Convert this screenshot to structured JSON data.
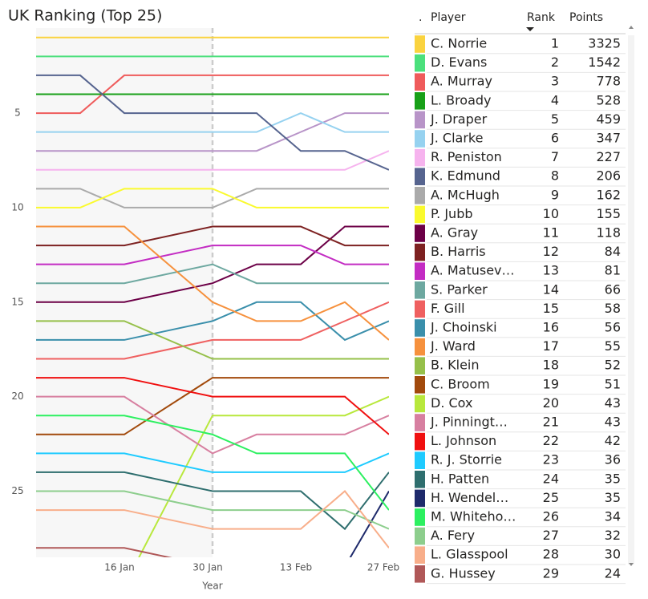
{
  "chart_data": {
    "type": "line",
    "title": "UK Ranking (Top 25)",
    "xlabel": "Year",
    "x": [
      2,
      9,
      16,
      30,
      37,
      44,
      51,
      58
    ],
    "xlim": [
      2,
      58
    ],
    "xticks": [
      {
        "value": 16,
        "label": "16 Jan"
      },
      {
        "value": 30,
        "label": "30 Jan"
      },
      {
        "value": 44,
        "label": "13 Feb"
      },
      {
        "value": 58,
        "label": "27 Feb"
      }
    ],
    "ylim": [
      0.5,
      28.5
    ],
    "yticks": [
      5,
      10,
      15,
      20,
      25
    ],
    "y_reversed": true,
    "grid": false,
    "reference_x": 30,
    "series": [
      {
        "name": "C. Norrie",
        "color": "#FAD33F",
        "values": [
          1,
          1,
          1,
          1,
          1,
          1,
          1,
          1
        ]
      },
      {
        "name": "D. Evans",
        "color": "#4BE07C",
        "values": [
          2,
          2,
          2,
          2,
          2,
          2,
          2,
          2
        ]
      },
      {
        "name": "A. Murray",
        "color": "#EF5B5B",
        "values": [
          5,
          5,
          3,
          3,
          3,
          3,
          3,
          3
        ]
      },
      {
        "name": "L. Broady",
        "color": "#18A018",
        "values": [
          4,
          4,
          4,
          4,
          4,
          4,
          4,
          4
        ]
      },
      {
        "name": "J. Draper",
        "color": "#B894C8",
        "values": [
          7,
          7,
          7,
          7,
          7,
          6,
          5,
          5
        ]
      },
      {
        "name": "J. Clarke",
        "color": "#96D2F0",
        "values": [
          6,
          6,
          6,
          6,
          6,
          5,
          6,
          6
        ]
      },
      {
        "name": "R. Peniston",
        "color": "#F6B3EE",
        "values": [
          8,
          8,
          8,
          8,
          8,
          8,
          8,
          7
        ]
      },
      {
        "name": "K. Edmund",
        "color": "#56648F",
        "values": [
          3,
          3,
          5,
          5,
          5,
          7,
          7,
          8
        ]
      },
      {
        "name": "A. McHugh",
        "color": "#AAAAAA",
        "values": [
          9,
          9,
          10,
          10,
          9,
          9,
          9,
          9
        ]
      },
      {
        "name": "P. Jubb",
        "color": "#FAFA2E",
        "values": [
          10,
          10,
          9,
          9,
          10,
          10,
          10,
          10
        ]
      },
      {
        "name": "A. Gray",
        "color": "#6C0047",
        "values": [
          15,
          15,
          15,
          14,
          13,
          13,
          11,
          11
        ]
      },
      {
        "name": "B. Harris",
        "color": "#7D2121",
        "values": [
          12,
          12,
          12,
          11,
          11,
          11,
          12,
          12
        ]
      },
      {
        "name": "A. Matusev…",
        "color": "#C32CC3",
        "values": [
          13,
          13,
          13,
          12,
          12,
          12,
          13,
          13
        ]
      },
      {
        "name": "S. Parker",
        "color": "#6DA8A0",
        "values": [
          14,
          14,
          14,
          13,
          14,
          14,
          14,
          14
        ]
      },
      {
        "name": "F. Gill",
        "color": "#EF6060",
        "values": [
          18,
          18,
          18,
          17,
          17,
          17,
          16,
          15
        ]
      },
      {
        "name": "J. Choinski",
        "color": "#3A8FAB",
        "values": [
          17,
          17,
          17,
          16,
          15,
          15,
          17,
          16
        ]
      },
      {
        "name": "J. Ward",
        "color": "#F6913D",
        "values": [
          11,
          11,
          11,
          15,
          16,
          16,
          15,
          17
        ]
      },
      {
        "name": "B. Klein",
        "color": "#96C04A",
        "values": [
          16,
          16,
          16,
          18,
          18,
          18,
          18,
          18
        ]
      },
      {
        "name": "C. Broom",
        "color": "#A24A0C",
        "values": [
          22,
          22,
          22,
          19,
          19,
          19,
          19,
          19
        ]
      },
      {
        "name": "D. Cox",
        "color": "#B8E83C",
        "values": [
          30,
          30,
          30,
          21,
          21,
          21,
          21,
          20
        ]
      },
      {
        "name": "J. Pinningt…",
        "color": "#D77FA0",
        "values": [
          20,
          20,
          20,
          23,
          22,
          22,
          22,
          21
        ]
      },
      {
        "name": "L. Johnson",
        "color": "#F01010",
        "values": [
          19,
          19,
          19,
          20,
          20,
          20,
          20,
          22
        ]
      },
      {
        "name": "R. J. Storrie",
        "color": "#1FCBFF",
        "values": [
          23,
          23,
          23,
          24,
          24,
          24,
          24,
          23
        ]
      },
      {
        "name": "H. Patten",
        "color": "#2E6E6E",
        "values": [
          24,
          24,
          24,
          25,
          25,
          25,
          27,
          24
        ]
      },
      {
        "name": "H. Wendel…",
        "color": "#1E2A6B",
        "values": [
          null,
          null,
          null,
          null,
          null,
          null,
          29,
          25
        ]
      },
      {
        "name": "M. Whiteho…",
        "color": "#2CF060",
        "values": [
          21,
          21,
          21,
          22,
          23,
          23,
          23,
          26
        ]
      },
      {
        "name": "A. Fery",
        "color": "#8DCE8D",
        "values": [
          25,
          25,
          25,
          26,
          26,
          26,
          26,
          27
        ]
      },
      {
        "name": "L. Glasspool",
        "color": "#F8AE8A",
        "values": [
          26,
          26,
          26,
          27,
          27,
          27,
          25,
          28
        ]
      },
      {
        "name": "G. Hussey",
        "color": "#B05858",
        "values": [
          28,
          28,
          28,
          29,
          29,
          29,
          29,
          29
        ]
      }
    ]
  },
  "table": {
    "columns": [
      ".",
      "Player",
      "Rank",
      "Points"
    ],
    "rank": [
      1,
      2,
      3,
      4,
      5,
      6,
      7,
      8,
      9,
      10,
      11,
      12,
      13,
      14,
      15,
      16,
      17,
      18,
      19,
      20,
      21,
      22,
      23,
      24,
      25,
      26,
      27,
      28,
      29
    ],
    "points": [
      3325,
      1542,
      778,
      528,
      459,
      347,
      227,
      206,
      162,
      155,
      118,
      84,
      81,
      66,
      58,
      56,
      55,
      52,
      51,
      43,
      43,
      42,
      36,
      35,
      35,
      34,
      32,
      30,
      24
    ]
  }
}
